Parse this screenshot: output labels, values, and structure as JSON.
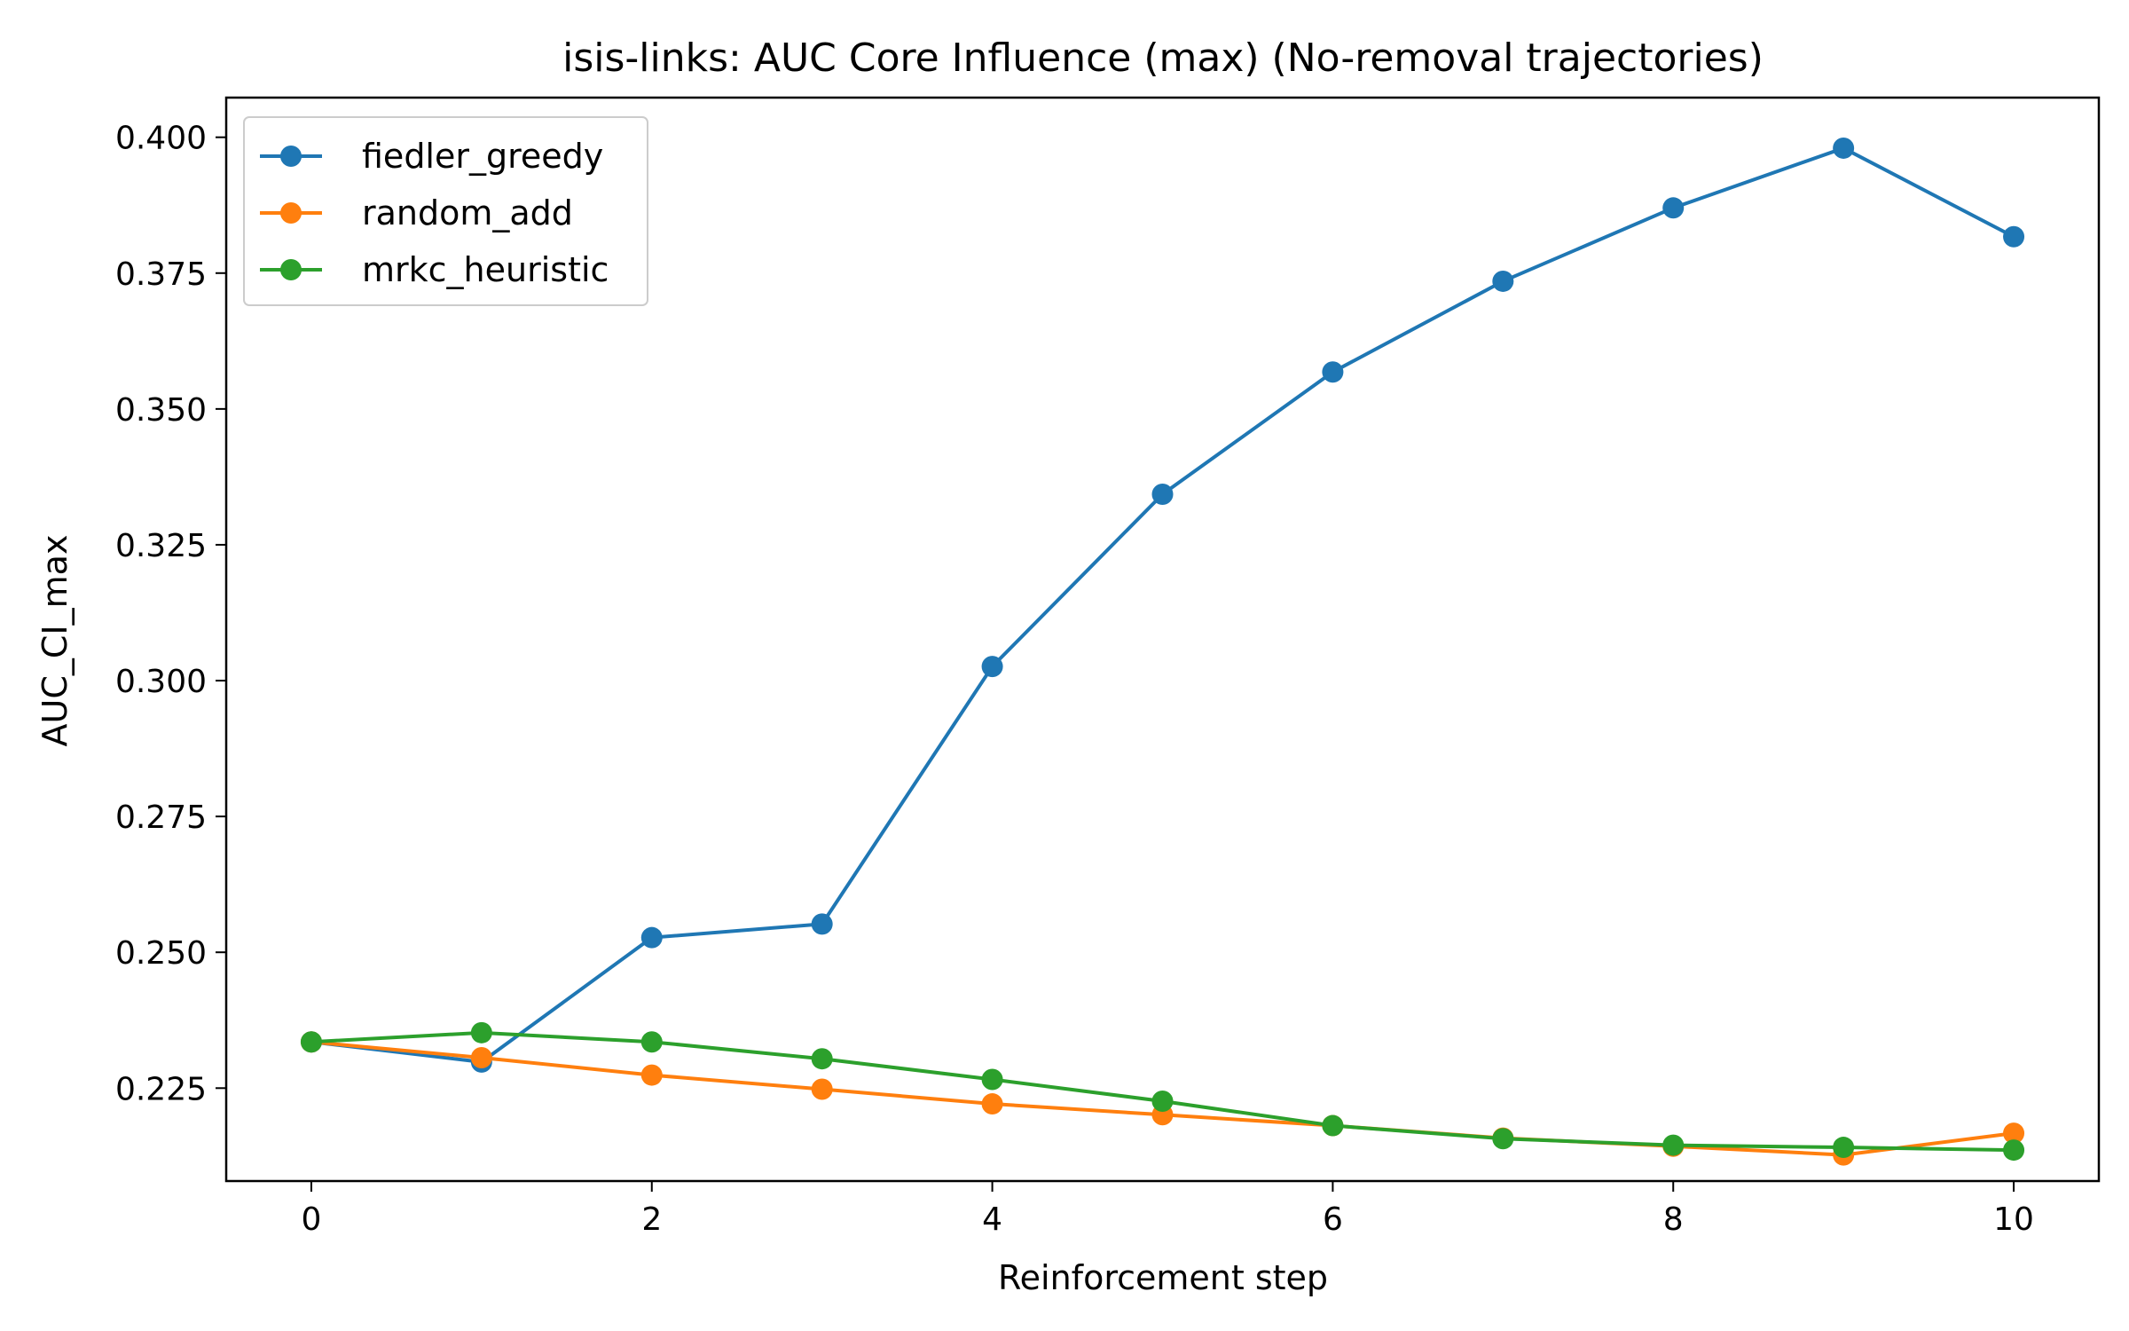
{
  "chart_data": {
    "type": "line",
    "title": "isis-links: AUC Core Influence (max) (No-removal trajectories)",
    "xlabel": "Reinforcement step",
    "ylabel": "AUC_CI_max",
    "x": [
      0,
      1,
      2,
      3,
      4,
      5,
      6,
      7,
      8,
      9,
      10
    ],
    "xlim": [
      -0.5,
      10.5
    ],
    "ylim": [
      0.2079,
      0.4073
    ],
    "xticks": [
      "0",
      "2",
      "4",
      "6",
      "8",
      "10"
    ],
    "yticks": [
      "0.225",
      "0.250",
      "0.275",
      "0.300",
      "0.325",
      "0.350",
      "0.375",
      "0.400"
    ],
    "grid": false,
    "legend_position": "top-left",
    "series": [
      {
        "name": "fiedler_greedy",
        "color": "#1f77b4",
        "values": [
          0.2335,
          0.2298,
          0.2527,
          0.2552,
          0.3026,
          0.3343,
          0.3568,
          0.3735,
          0.387,
          0.398,
          0.3817
        ]
      },
      {
        "name": "random_add",
        "color": "#ff7f0e",
        "values": [
          0.2335,
          0.2306,
          0.2274,
          0.2248,
          0.2221,
          0.2201,
          0.2181,
          0.2158,
          0.2143,
          0.2127,
          0.2167
        ]
      },
      {
        "name": "mrkc_heuristic",
        "color": "#2ca02c",
        "values": [
          0.2335,
          0.2352,
          0.2335,
          0.2304,
          0.2266,
          0.2226,
          0.2181,
          0.2157,
          0.2145,
          0.2141,
          0.2136
        ]
      }
    ]
  }
}
